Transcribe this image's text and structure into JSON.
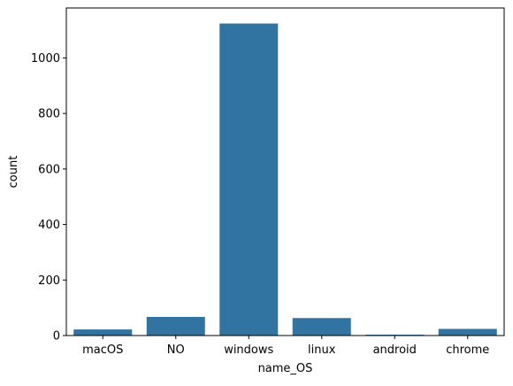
{
  "chart_data": {
    "type": "bar",
    "title": "",
    "xlabel": "name_OS",
    "ylabel": "count",
    "categories": [
      "macOS",
      "NO",
      "windows",
      "linux",
      "android",
      "chrome"
    ],
    "values": [
      22,
      67,
      1124,
      63,
      3,
      24
    ],
    "ylim": [
      0,
      1180
    ],
    "yticks": [
      0,
      200,
      400,
      600,
      800,
      1000
    ],
    "grid": false,
    "legend": "none",
    "bar_color": "#3274a1"
  }
}
